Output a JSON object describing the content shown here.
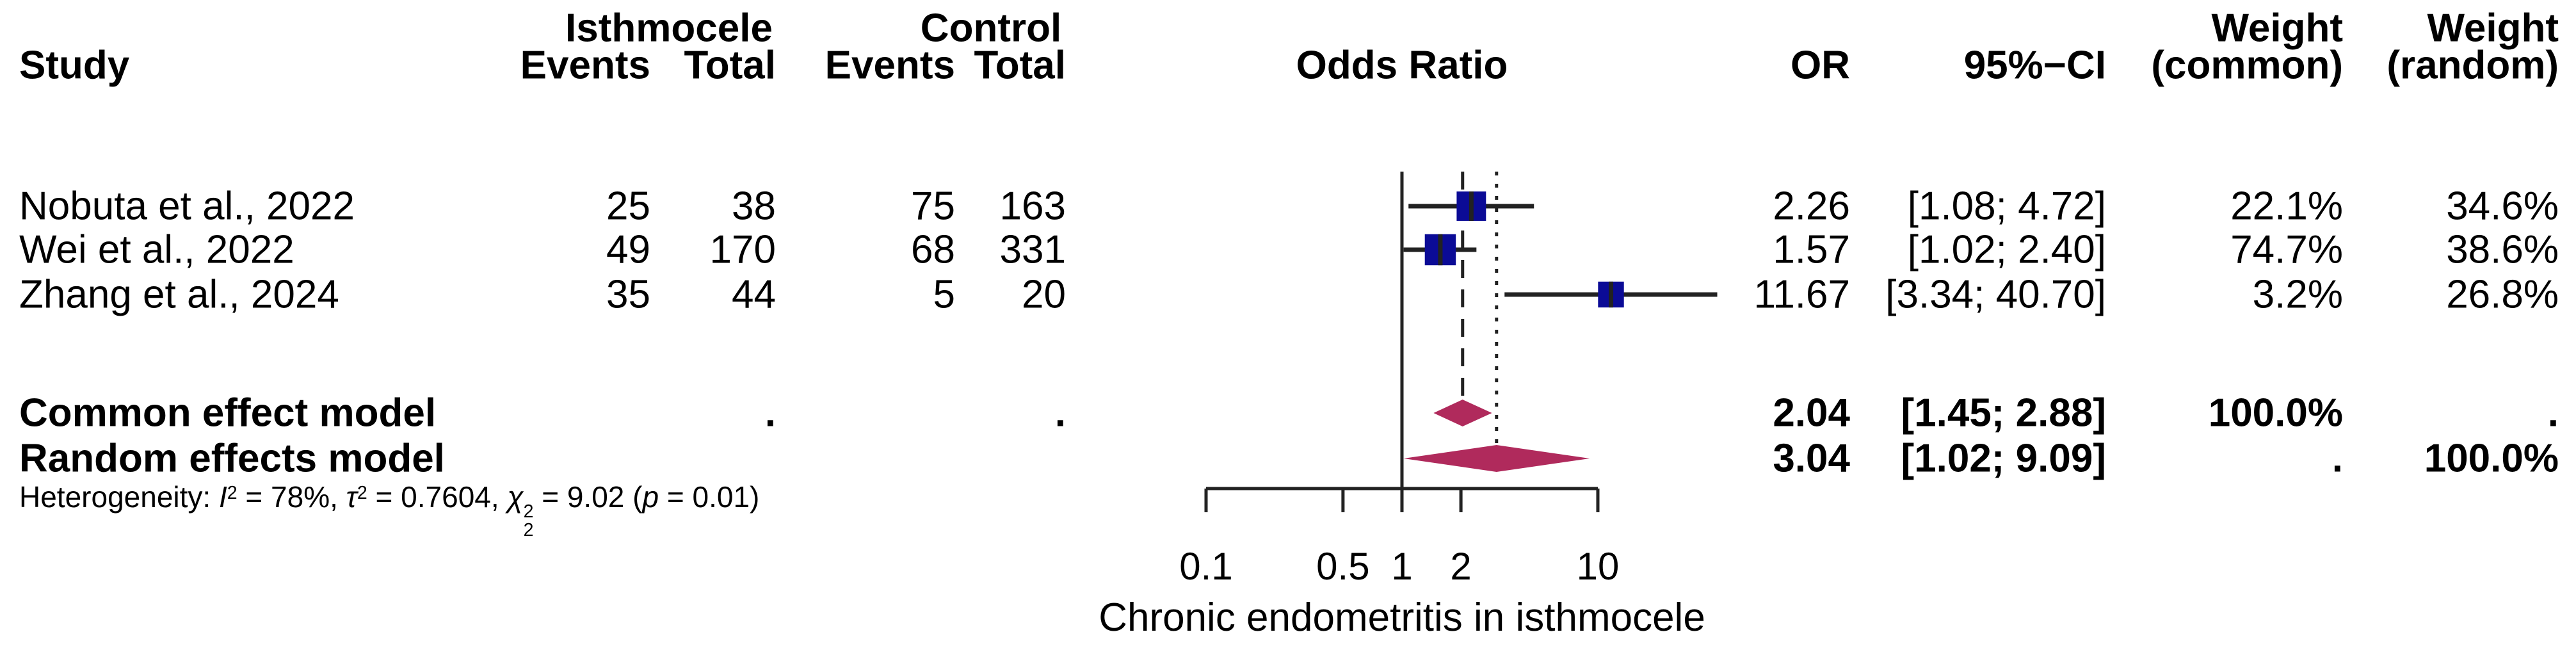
{
  "header": {
    "study": "Study",
    "group_isthmocele": "Isthmocele",
    "group_control": "Control",
    "events_isthmocele": "Events",
    "total_isthmocele": "Total",
    "events_control": "Events",
    "total_control": "Total",
    "odds_ratio": "Odds Ratio",
    "or": "OR",
    "ci": "95%−CI",
    "weight_common_top": "Weight",
    "weight_random_top": "Weight",
    "weight_common": "(common)",
    "weight_random": "(random)"
  },
  "rows": [
    {
      "study": "Nobuta et al., 2022",
      "events_isthmocele": "25",
      "total_isthmocele": "38",
      "events_control": "75",
      "total_control": "163",
      "or": "2.26",
      "ci": "[1.08; 4.72]",
      "weight_common": "22.1%",
      "weight_random": "34.6%"
    },
    {
      "study": "Wei et al., 2022",
      "events_isthmocele": "49",
      "total_isthmocele": "170",
      "events_control": "68",
      "total_control": "331",
      "or": "1.57",
      "ci": "[1.02; 2.40]",
      "weight_common": "74.7%",
      "weight_random": "38.6%"
    },
    {
      "study": "Zhang et al., 2024",
      "events_isthmocele": "35",
      "total_isthmocele": "44",
      "events_control": "5",
      "total_control": "20",
      "or": "11.67",
      "ci": "[3.34; 40.70]",
      "weight_common": "3.2%",
      "weight_random": "26.8%"
    }
  ],
  "summary": {
    "common": {
      "label": "Common effect model",
      "total_isthmocele": ".",
      "total_control": ".",
      "or": "2.04",
      "ci": "[1.45; 2.88]",
      "weight_common": "100.0%",
      "weight_random": "."
    },
    "random": {
      "label": "Random effects model",
      "or": "3.04",
      "ci": "[1.02; 9.09]",
      "weight_common": ".",
      "weight_random": "100.0%"
    }
  },
  "heterogeneity_segments": [
    {
      "t": "Heterogeneity: "
    },
    {
      "t": "I",
      "it": true
    },
    {
      "sup": "2"
    },
    {
      "t": " = 78%, "
    },
    {
      "t": "τ",
      "it": true
    },
    {
      "sup": "2"
    },
    {
      "t": " = 0.7604, "
    },
    {
      "t": "χ",
      "it": true
    },
    {
      "stack": {
        "sup": "2",
        "sub": "2"
      }
    },
    {
      "t": " = 9.02 ("
    },
    {
      "t": "p",
      "it": true
    },
    {
      "t": " = 0.01)"
    }
  ],
  "chart_data": {
    "type": "forest",
    "x_scale": "log10",
    "ref_line": 1,
    "axis": {
      "min": 0.1,
      "max": 10,
      "ticks": [
        0.1,
        0.5,
        1,
        2,
        10
      ],
      "tick_labels": [
        "0.1",
        "0.5",
        "1",
        "2",
        "10"
      ],
      "label": "Chronic endometritis in isthmocele"
    },
    "studies": [
      {
        "name": "Nobuta et al., 2022",
        "or": 2.26,
        "ci_low": 1.08,
        "ci_high": 4.72,
        "weight_common": 22.1,
        "weight_random": 34.6
      },
      {
        "name": "Wei et al., 2022",
        "or": 1.57,
        "ci_low": 1.02,
        "ci_high": 2.4,
        "weight_common": 74.7,
        "weight_random": 38.6
      },
      {
        "name": "Zhang et al., 2024",
        "or": 11.67,
        "ci_low": 3.34,
        "ci_high": 40.7,
        "weight_common": 3.2,
        "weight_random": 26.8
      }
    ],
    "common_effect": {
      "or": 2.04,
      "ci_low": 1.45,
      "ci_high": 2.88
    },
    "random_effects": {
      "or": 3.04,
      "ci_low": 1.02,
      "ci_high": 9.09
    },
    "colors": {
      "square": "#0b0b96",
      "diamond": "#b02a5c",
      "line": "#222222",
      "text": "#000000"
    }
  }
}
